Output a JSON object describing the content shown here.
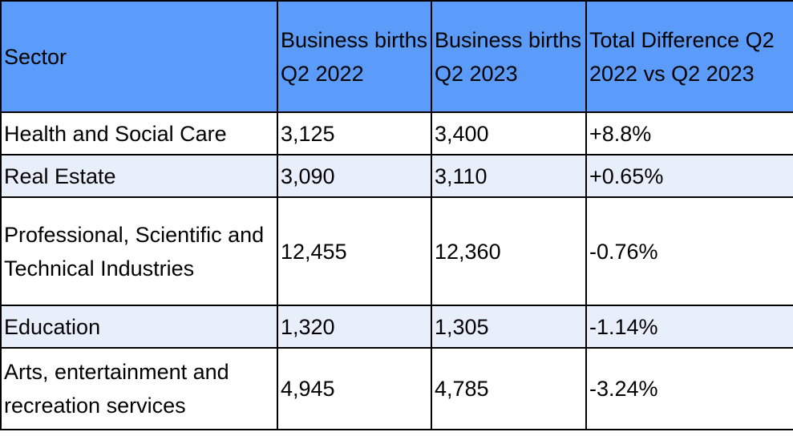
{
  "colors": {
    "header_bg": "#5b9bfa",
    "band_bg": "#e8effb",
    "row_bg": "#ffffff",
    "border": "#000000"
  },
  "chart_data": {
    "type": "table",
    "columns": [
      "Sector",
      "Business births Q2 2022",
      "Business births Q2 2023",
      "Total Difference Q2 2022 vs Q2 2023"
    ],
    "rows": [
      [
        "Health and Social Care",
        "3,125",
        "3,400",
        "+8.8%"
      ],
      [
        "Real Estate",
        "3,090",
        "3,110",
        "+0.65%"
      ],
      [
        "Professional, Scientific and Technical Industries",
        "12,455",
        "12,360",
        "-0.76%"
      ],
      [
        "Education",
        "1,320",
        "1,305",
        "-1.14%"
      ],
      [
        "Arts, entertainment and recreation services",
        "4,945",
        "4,785",
        "-3.24%"
      ]
    ]
  }
}
